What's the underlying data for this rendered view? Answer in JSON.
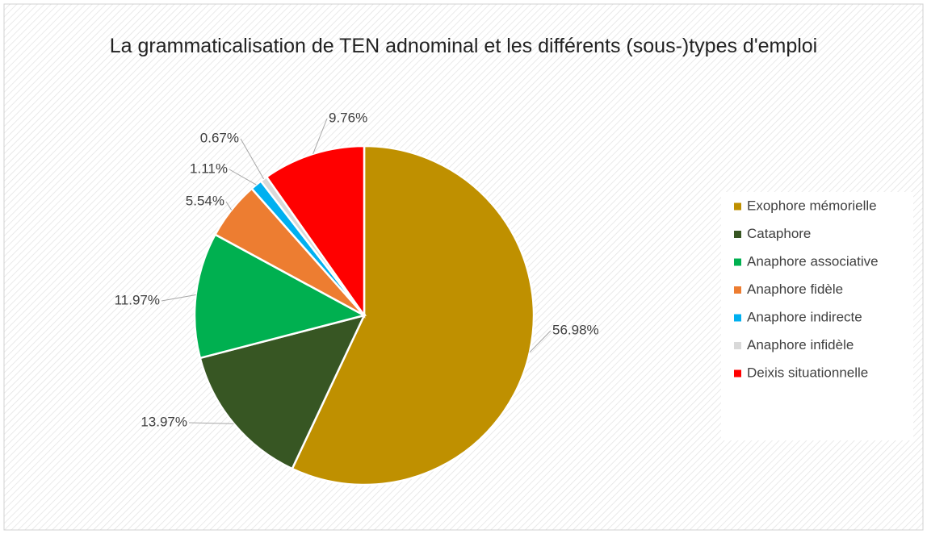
{
  "chart_data": {
    "type": "pie",
    "title": "La grammaticalisation de TEN adnominal et les différents (sous-)types d'emploi",
    "categories": [
      "Exophore mémorielle",
      "Cataphore",
      "Anaphore associative",
      "Anaphore fidèle",
      "Anaphore indirecte",
      "Anaphore infidèle",
      "Deixis situationnelle"
    ],
    "values": [
      56.98,
      13.97,
      11.97,
      5.54,
      1.11,
      0.67,
      9.76
    ],
    "value_labels": [
      "56.98%",
      "13.97%",
      "11.97%",
      "5.54%",
      "1.11%",
      "0.67%",
      "9.76%"
    ],
    "colors": [
      "#bf9000",
      "#375623",
      "#00b050",
      "#ed7d31",
      "#00b0f0",
      "#d9d9d9",
      "#ff0000"
    ],
    "legend": "right"
  }
}
